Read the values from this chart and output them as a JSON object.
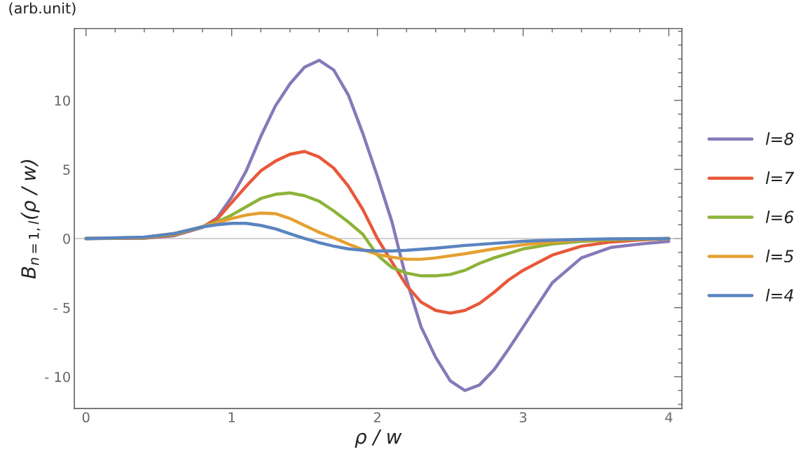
{
  "chart_data": {
    "type": "line",
    "xlabel": "ρ / w",
    "ylabel": "B$_{n=1,l}$(ρ / w)",
    "annotations": [
      "(arb.unit)"
    ],
    "xlim": [
      -0.08,
      4.09
    ],
    "ylim": [
      -12.3,
      15.2
    ],
    "xticks": [
      0,
      {
        "value": 0.2,
        "label": null
      },
      {
        "value": 0.4,
        "label": null
      },
      {
        "value": 0.6,
        "label": null
      },
      {
        "value": 0.8,
        "label": null
      },
      1,
      {
        "value": 1.2,
        "label": null
      },
      {
        "value": 1.4,
        "label": null
      },
      {
        "value": 1.6,
        "label": null
      },
      {
        "value": 1.8,
        "label": null
      },
      2,
      {
        "value": 2.2,
        "label": null
      },
      {
        "value": 2.4,
        "label": null
      },
      {
        "value": 2.6,
        "label": null
      },
      {
        "value": 2.8,
        "label": null
      },
      3,
      {
        "value": 3.2,
        "label": null
      },
      {
        "value": 3.4,
        "label": null
      },
      {
        "value": 3.6,
        "label": null
      },
      {
        "value": 3.8,
        "label": null
      },
      4
    ],
    "yticks": [
      {
        "value": -12,
        "label": null
      },
      {
        "value": -11,
        "label": null
      },
      {
        "value": -10,
        "label": "- 10"
      },
      {
        "value": -9,
        "label": null
      },
      {
        "value": -8,
        "label": null
      },
      {
        "value": -7,
        "label": null
      },
      {
        "value": -6,
        "label": null
      },
      {
        "value": -5,
        "label": "- 5"
      },
      {
        "value": -4,
        "label": null
      },
      {
        "value": -3,
        "label": null
      },
      {
        "value": -2,
        "label": null
      },
      {
        "value": -1,
        "label": null
      },
      0,
      {
        "value": 1,
        "label": null
      },
      {
        "value": 2,
        "label": null
      },
      {
        "value": 3,
        "label": null
      },
      {
        "value": 4,
        "label": null
      },
      5,
      {
        "value": 6,
        "label": null
      },
      {
        "value": 7,
        "label": null
      },
      {
        "value": 8,
        "label": null
      },
      {
        "value": 9,
        "label": null
      },
      10,
      {
        "value": 11,
        "label": null
      },
      {
        "value": 12,
        "label": null
      },
      {
        "value": 13,
        "label": null
      },
      {
        "value": 14,
        "label": null
      },
      {
        "value": 15,
        "label": null
      }
    ],
    "ref_lines": [
      {
        "axis": "y",
        "value": 0,
        "color": "#c0c0c0"
      }
    ],
    "grid": false,
    "legend": "right",
    "marker": "none",
    "line_style": "solid",
    "series": [
      {
        "name": "l=8",
        "color": "#8779b8",
        "x": [
          0,
          0.4,
          0.6,
          0.8,
          0.9,
          1.0,
          1.1,
          1.2,
          1.3,
          1.4,
          1.5,
          1.6,
          1.7,
          1.8,
          1.9,
          2.0,
          2.1,
          2.2,
          2.3,
          2.4,
          2.5,
          2.6,
          2.7,
          2.8,
          2.9,
          3.0,
          3.2,
          3.4,
          3.6,
          3.8,
          4.0
        ],
        "values": [
          0,
          0.02,
          0.2,
          0.8,
          1.5,
          3.0,
          4.9,
          7.4,
          9.6,
          11.2,
          12.4,
          12.9,
          12.2,
          10.4,
          7.6,
          4.5,
          1.2,
          -3.0,
          -6.4,
          -8.6,
          -10.3,
          -11.0,
          -10.6,
          -9.5,
          -8.0,
          -6.4,
          -3.2,
          -1.4,
          -0.65,
          -0.4,
          -0.2
        ]
      },
      {
        "name": "l=7",
        "color": "#e8583a",
        "x": [
          0,
          0.4,
          0.6,
          0.8,
          0.9,
          1.0,
          1.1,
          1.2,
          1.3,
          1.4,
          1.5,
          1.6,
          1.7,
          1.8,
          1.9,
          2.0,
          2.1,
          2.2,
          2.3,
          2.4,
          2.5,
          2.6,
          2.7,
          2.8,
          2.9,
          3.0,
          3.2,
          3.4,
          3.6,
          3.8,
          4.0
        ],
        "values": [
          0,
          0.04,
          0.25,
          0.85,
          1.4,
          2.6,
          3.8,
          4.9,
          5.6,
          6.1,
          6.3,
          5.9,
          5.1,
          3.8,
          2.1,
          0,
          -1.7,
          -3.4,
          -4.6,
          -5.2,
          -5.4,
          -5.2,
          -4.7,
          -3.9,
          -3.0,
          -2.3,
          -1.2,
          -0.55,
          -0.25,
          -0.1,
          0
        ]
      },
      {
        "name": "l=6",
        "color": "#8db33a",
        "x": [
          0,
          0.4,
          0.6,
          0.8,
          0.9,
          1.0,
          1.1,
          1.2,
          1.3,
          1.4,
          1.5,
          1.6,
          1.7,
          1.8,
          1.9,
          2.0,
          2.1,
          2.2,
          2.3,
          2.4,
          2.5,
          2.6,
          2.7,
          2.8,
          3.0,
          3.2,
          3.4,
          3.6,
          4.0
        ],
        "values": [
          0,
          0.06,
          0.3,
          0.85,
          1.2,
          1.7,
          2.3,
          2.9,
          3.2,
          3.3,
          3.1,
          2.7,
          2.0,
          1.2,
          0.3,
          -1.2,
          -2.1,
          -2.5,
          -2.7,
          -2.7,
          -2.6,
          -2.3,
          -1.8,
          -1.4,
          -0.75,
          -0.4,
          -0.2,
          -0.1,
          0
        ]
      },
      {
        "name": "l=5",
        "color": "#e6a030",
        "x": [
          0,
          0.4,
          0.6,
          0.8,
          0.9,
          1.0,
          1.1,
          1.2,
          1.3,
          1.4,
          1.5,
          1.6,
          1.7,
          1.8,
          1.9,
          2.0,
          2.1,
          2.2,
          2.3,
          2.4,
          2.6,
          2.8,
          3.0,
          3.2,
          3.4,
          3.6,
          4.0
        ],
        "values": [
          0,
          0.08,
          0.35,
          0.85,
          1.15,
          1.45,
          1.7,
          1.85,
          1.8,
          1.45,
          0.95,
          0.45,
          0.05,
          -0.4,
          -0.8,
          -1.15,
          -1.35,
          -1.5,
          -1.5,
          -1.4,
          -1.1,
          -0.75,
          -0.45,
          -0.25,
          -0.12,
          -0.05,
          0
        ]
      },
      {
        "name": "l=4",
        "color": "#5a84c0",
        "x": [
          0,
          0.4,
          0.6,
          0.8,
          0.9,
          1.0,
          1.1,
          1.2,
          1.3,
          1.4,
          1.5,
          1.6,
          1.7,
          1.8,
          1.9,
          2.0,
          2.1,
          2.2,
          2.4,
          2.6,
          2.8,
          3.0,
          3.2,
          3.4,
          3.6,
          4.0
        ],
        "values": [
          0,
          0.1,
          0.35,
          0.85,
          1.0,
          1.1,
          1.1,
          0.95,
          0.7,
          0.35,
          0,
          -0.3,
          -0.55,
          -0.75,
          -0.85,
          -0.9,
          -0.9,
          -0.85,
          -0.7,
          -0.5,
          -0.35,
          -0.2,
          -0.12,
          -0.06,
          -0.03,
          0
        ]
      }
    ]
  }
}
